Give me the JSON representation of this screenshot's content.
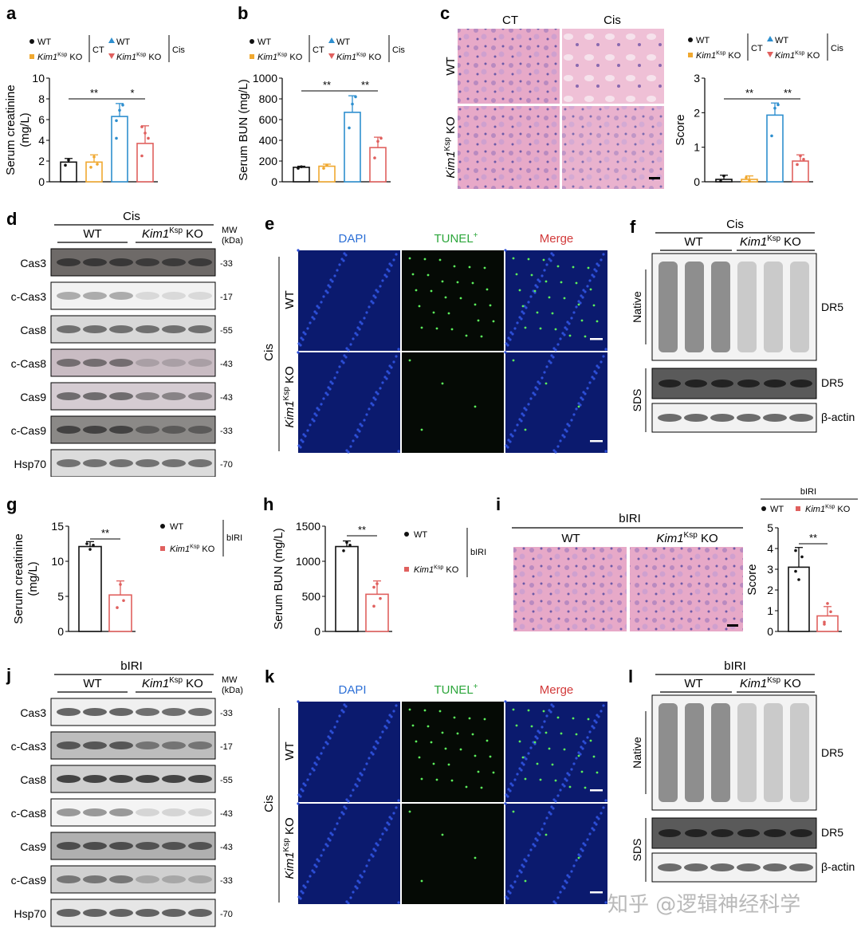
{
  "panels": {
    "a": "a",
    "b": "b",
    "c": "c",
    "d": "d",
    "e": "e",
    "f": "f",
    "g": "g",
    "h": "h",
    "i": "i",
    "j": "j",
    "k": "k",
    "l": "l"
  },
  "legend": {
    "wt": "WT",
    "ko_italic": "Kim1",
    "ko_sup": "Ksp",
    "ko_suffix": " KO",
    "ct": "CT",
    "cis": "Cis",
    "biri": "bIRI"
  },
  "colors": {
    "wt_ct": "#111111",
    "ko_ct": "#f0a830",
    "wt_cis": "#2e8fcf",
    "ko_cis": "#e0605e",
    "bar_ko": "#e0605e"
  },
  "sig": {
    "double": "**",
    "single": "*"
  },
  "chart_data": [
    {
      "type": "bar",
      "panel": "a",
      "ylabel": "Serum creatinine\n(mg/L)",
      "ylim": [
        0,
        10
      ],
      "yticks": [
        "0",
        "2",
        "4",
        "6",
        "8",
        "10"
      ],
      "series": [
        {
          "name": "WT CT",
          "values": [
            1.9
          ]
        },
        {
          "name": "Kim1Ksp KO CT",
          "values": [
            1.9
          ]
        },
        {
          "name": "WT Cis",
          "values": [
            6.3
          ]
        },
        {
          "name": "Kim1Ksp KO Cis",
          "values": [
            3.7
          ]
        }
      ]
    },
    {
      "type": "bar",
      "panel": "b",
      "ylabel": "Serum BUN (mg/L)",
      "ylim": [
        0,
        1000
      ],
      "yticks": [
        "0",
        "200",
        "400",
        "600",
        "800",
        "1000"
      ],
      "series": [
        {
          "name": "WT CT",
          "values": [
            140
          ]
        },
        {
          "name": "Kim1Ksp KO CT",
          "values": [
            150
          ]
        },
        {
          "name": "WT Cis",
          "values": [
            670
          ]
        },
        {
          "name": "Kim1Ksp KO Cis",
          "values": [
            330
          ]
        }
      ]
    },
    {
      "type": "bar",
      "panel": "c",
      "ylabel": "Score",
      "ylim": [
        0,
        3
      ],
      "yticks": [
        "0",
        "1",
        "2",
        "3"
      ],
      "series": [
        {
          "name": "WT CT",
          "values": [
            0.07
          ]
        },
        {
          "name": "Kim1Ksp KO CT",
          "values": [
            0.07
          ]
        },
        {
          "name": "WT Cis",
          "values": [
            1.93
          ]
        },
        {
          "name": "Kim1Ksp KO Cis",
          "values": [
            0.6
          ]
        }
      ]
    },
    {
      "type": "bar",
      "panel": "g",
      "ylabel": "Serum creatinine\n(mg/L)",
      "ylim": [
        0,
        15
      ],
      "yticks": [
        "0",
        "5",
        "10",
        "15"
      ],
      "series": [
        {
          "name": "WT",
          "values": [
            12.1
          ]
        },
        {
          "name": "Kim1Ksp KO",
          "values": [
            5.2
          ]
        }
      ]
    },
    {
      "type": "bar",
      "panel": "h",
      "ylabel": "Serum BUN (mg/L)",
      "ylim": [
        0,
        1500
      ],
      "yticks": [
        "0",
        "500",
        "1000",
        "1500"
      ],
      "series": [
        {
          "name": "WT",
          "values": [
            1210
          ]
        },
        {
          "name": "Kim1Ksp KO",
          "values": [
            530
          ]
        }
      ]
    },
    {
      "type": "bar",
      "panel": "i",
      "ylabel": "Score",
      "ylim": [
        0,
        5
      ],
      "yticks": [
        "0",
        "1",
        "2",
        "3",
        "4",
        "5"
      ],
      "series": [
        {
          "name": "WT",
          "values": [
            3.1
          ]
        },
        {
          "name": "Kim1Ksp KO",
          "values": [
            0.75
          ]
        }
      ]
    }
  ],
  "histology_c": {
    "col1": "CT",
    "col2": "Cis",
    "row1": "WT"
  },
  "histology_i": {
    "title": "bIRI",
    "col1": "WT"
  },
  "western_d": {
    "title": "Cis",
    "wt": "WT",
    "mw": "MW\n(kDa)",
    "rows": [
      {
        "label": "Cas3",
        "mw": "-33"
      },
      {
        "label": "c-Cas3",
        "mw": "-17"
      },
      {
        "label": "Cas8",
        "mw": "-55"
      },
      {
        "label": "c-Cas8",
        "mw": "-43"
      },
      {
        "label": "Cas9",
        "mw": "-43"
      },
      {
        "label": "c-Cas9",
        "mw": "-33"
      },
      {
        "label": "Hsp70",
        "mw": "-70"
      }
    ]
  },
  "western_j": {
    "title": "bIRI",
    "wt": "WT",
    "mw": "MW\n(kDa)",
    "rows": [
      {
        "label": "Cas3",
        "mw": "-33"
      },
      {
        "label": "c-Cas3",
        "mw": "-17"
      },
      {
        "label": "Cas8",
        "mw": "-55"
      },
      {
        "label": "c-Cas8",
        "mw": "-43"
      },
      {
        "label": "Cas9",
        "mw": "-43"
      },
      {
        "label": "c-Cas9",
        "mw": "-33"
      },
      {
        "label": "Hsp70",
        "mw": "-70"
      }
    ]
  },
  "tunel_e": {
    "dapi": "DAPI",
    "tunel": "TUNEL",
    "tunel_sup": "+",
    "merge": "Merge",
    "side": "Cis",
    "row1": "WT"
  },
  "tunel_k": {
    "dapi": "DAPI",
    "tunel": "TUNEL",
    "tunel_sup": "+",
    "merge": "Merge",
    "side": "Cis",
    "row1": "WT"
  },
  "dr5_f": {
    "title": "Cis",
    "wt": "WT",
    "native": "Native",
    "sds": "SDS",
    "dr5": "DR5",
    "actin": "β-actin"
  },
  "dr5_l": {
    "title": "bIRI",
    "wt": "WT",
    "native": "Native",
    "sds": "SDS",
    "dr5": "DR5",
    "actin": "β-actin"
  },
  "watermark": "知乎 @逻辑神经科学"
}
